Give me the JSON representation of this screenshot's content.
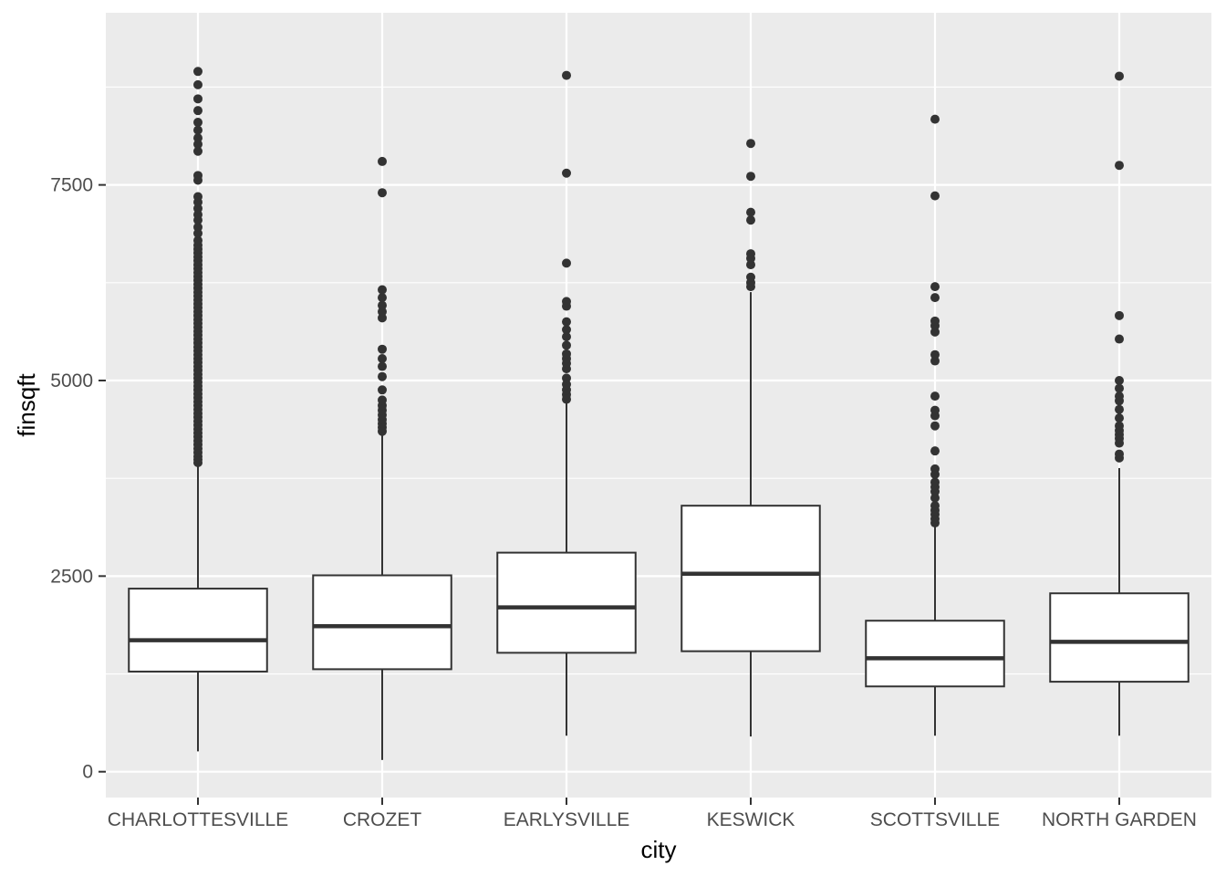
{
  "chart_data": {
    "type": "boxplot",
    "xlabel": "city",
    "ylabel": "finsqft",
    "ylim": [
      -330,
      9700
    ],
    "yticks": [
      0,
      2500,
      5000,
      7500
    ],
    "ytick_labels": [
      "0",
      "2500",
      "5000",
      "7500"
    ],
    "grid": true,
    "colors": {
      "panel": "#ebebeb",
      "grid_major": "#ffffff",
      "box_fill": "#ffffff",
      "line": "#333333"
    },
    "categories": [
      "CHARLOTTESVILLE",
      "CROZET",
      "EARLYSVILLE",
      "KESWICK",
      "SCOTTSVILLE",
      "NORTH GARDEN"
    ],
    "boxes": [
      {
        "category": "CHARLOTTESVILLE",
        "whisker_low": 260,
        "q1": 1280,
        "median": 1680,
        "q3": 2340,
        "whisker_high": 3920,
        "outliers": [
          3950,
          3990,
          4030,
          4080,
          4130,
          4180,
          4230,
          4280,
          4330,
          4380,
          4430,
          4480,
          4530,
          4580,
          4630,
          4680,
          4730,
          4780,
          4830,
          4880,
          4930,
          4980,
          5030,
          5080,
          5130,
          5180,
          5230,
          5280,
          5330,
          5380,
          5430,
          5480,
          5530,
          5580,
          5630,
          5680,
          5730,
          5780,
          5830,
          5880,
          5930,
          5980,
          6030,
          6080,
          6130,
          6180,
          6230,
          6280,
          6330,
          6380,
          6430,
          6480,
          6530,
          6580,
          6630,
          6680,
          6730,
          6790,
          6880,
          6960,
          7050,
          7120,
          7200,
          7280,
          7350,
          7560,
          7620,
          7930,
          8020,
          8100,
          8200,
          8300,
          8450,
          8600,
          8780,
          8950
        ]
      },
      {
        "category": "CROZET",
        "whisker_low": 150,
        "q1": 1310,
        "median": 1860,
        "q3": 2510,
        "whisker_high": 4320,
        "outliers": [
          4350,
          4400,
          4450,
          4500,
          4560,
          4620,
          4680,
          4750,
          4880,
          5050,
          5180,
          5280,
          5400,
          5800,
          5880,
          5960,
          6060,
          6160,
          7400,
          7800
        ]
      },
      {
        "category": "EARLYSVILLE",
        "whisker_low": 460,
        "q1": 1520,
        "median": 2100,
        "q3": 2800,
        "whisker_high": 4720,
        "outliers": [
          4760,
          4820,
          4880,
          4950,
          5030,
          5150,
          5220,
          5280,
          5340,
          5450,
          5560,
          5650,
          5750,
          5950,
          6010,
          6500,
          7650,
          8900
        ]
      },
      {
        "category": "KESWICK",
        "whisker_low": 450,
        "q1": 1540,
        "median": 2530,
        "q3": 3400,
        "whisker_high": 6130,
        "outliers": [
          6200,
          6250,
          6320,
          6480,
          6560,
          6620,
          7050,
          7150,
          7610,
          8030
        ]
      },
      {
        "category": "SCOTTSVILLE",
        "whisker_low": 460,
        "q1": 1090,
        "median": 1450,
        "q3": 1930,
        "whisker_high": 3150,
        "outliers": [
          3180,
          3230,
          3290,
          3340,
          3400,
          3500,
          3580,
          3640,
          3700,
          3800,
          3870,
          4100,
          4420,
          4550,
          4620,
          4800,
          5250,
          5330,
          5620,
          5700,
          5760,
          6060,
          6200,
          7360,
          8340
        ]
      },
      {
        "category": "NORTH GARDEN",
        "whisker_low": 460,
        "q1": 1150,
        "median": 1660,
        "q3": 2280,
        "whisker_high": 3880,
        "outliers": [
          4010,
          4060,
          4200,
          4260,
          4310,
          4360,
          4420,
          4520,
          4630,
          4740,
          4800,
          4900,
          5000,
          5530,
          5830,
          7750,
          8890
        ]
      }
    ]
  }
}
